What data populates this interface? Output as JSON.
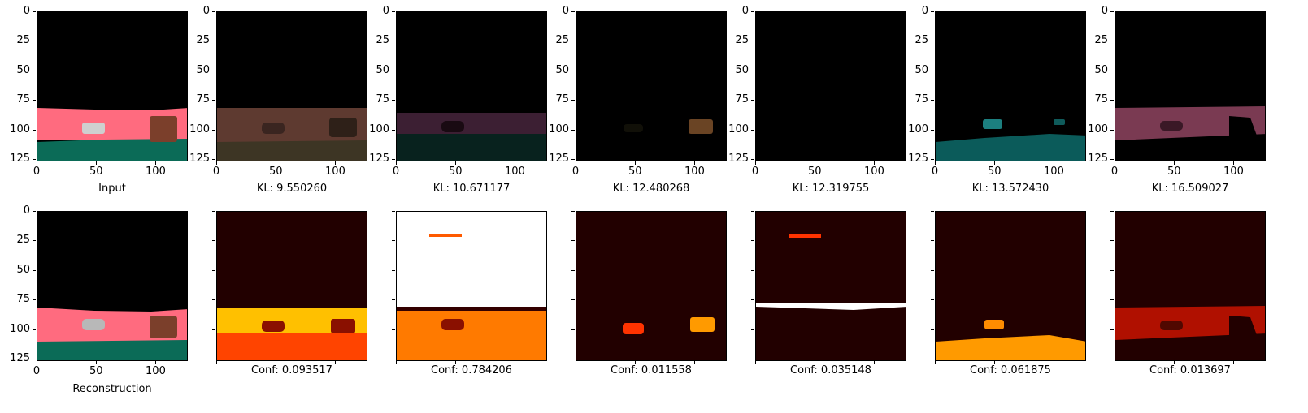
{
  "axes": {
    "y_ticks": [
      "0",
      "25",
      "50",
      "75",
      "100",
      "125"
    ],
    "x_ticks": [
      "0",
      "50",
      "100"
    ]
  },
  "top_row": {
    "captions": [
      "Input",
      "KL: 9.550260",
      "KL: 10.671177",
      "KL: 12.480268",
      "KL: 12.319755",
      "KL: 13.572430",
      "KL: 16.509027"
    ]
  },
  "bottom_row": {
    "captions": [
      "Reconstruction",
      "Conf: 0.093517",
      "Conf: 0.784206",
      "Conf: 0.011558",
      "Conf: 0.035148",
      "Conf: 0.061875",
      "Conf: 0.013697"
    ]
  },
  "colors": {
    "sky": "#000000",
    "road_pink": "#ff6b7f",
    "ground_teal": "#0b6b57"
  }
}
